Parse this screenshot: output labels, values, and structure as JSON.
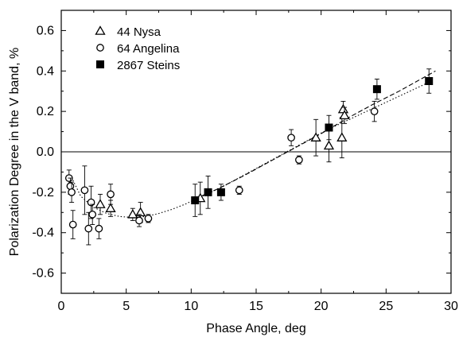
{
  "chart_data": {
    "type": "scatter",
    "xlabel": "Phase Angle, deg",
    "ylabel": "Polarization Degree in the V band, %",
    "xlim": [
      0,
      30
    ],
    "ylim": [
      -0.7,
      0.7
    ],
    "x_ticks": [
      0,
      5,
      10,
      15,
      20,
      25,
      30
    ],
    "y_ticks": [
      -0.6,
      -0.4,
      -0.2,
      0.0,
      0.2,
      0.4,
      0.6
    ],
    "x_tick_labels": [
      "0",
      "5",
      "10",
      "15",
      "20",
      "25",
      "30"
    ],
    "y_tick_labels": [
      "-0.6",
      "-0.4",
      "-0.2",
      "0.0",
      "0.2",
      "0.4",
      "0.6"
    ],
    "zero_line": 0.0,
    "legend_position": "top-left",
    "series": [
      {
        "name": "44 Nysa",
        "marker": "open-triangle",
        "points": [
          {
            "x": 3.0,
            "y": -0.26,
            "err": 0.05
          },
          {
            "x": 3.8,
            "y": -0.28,
            "err": 0.04
          },
          {
            "x": 5.5,
            "y": -0.31,
            "err": 0.03
          },
          {
            "x": 6.1,
            "y": -0.3,
            "err": 0.05
          },
          {
            "x": 10.7,
            "y": -0.23,
            "err": 0.08
          },
          {
            "x": 19.6,
            "y": 0.07,
            "err": 0.09
          },
          {
            "x": 20.6,
            "y": 0.03,
            "err": 0.08
          },
          {
            "x": 21.6,
            "y": 0.07,
            "err": 0.1
          },
          {
            "x": 21.7,
            "y": 0.21,
            "err": 0.04
          },
          {
            "x": 21.8,
            "y": 0.18,
            "err": 0.04
          }
        ]
      },
      {
        "name": "64 Angelina",
        "marker": "open-circle",
        "points": [
          {
            "x": 0.6,
            "y": -0.13,
            "err": 0.04
          },
          {
            "x": 0.7,
            "y": -0.17,
            "err": 0.04
          },
          {
            "x": 0.8,
            "y": -0.2,
            "err": 0.05
          },
          {
            "x": 0.9,
            "y": -0.36,
            "err": 0.07
          },
          {
            "x": 1.8,
            "y": -0.19,
            "err": 0.12
          },
          {
            "x": 2.1,
            "y": -0.38,
            "err": 0.08
          },
          {
            "x": 2.3,
            "y": -0.25,
            "err": 0.08
          },
          {
            "x": 2.4,
            "y": -0.31,
            "err": 0.05
          },
          {
            "x": 2.9,
            "y": -0.38,
            "err": 0.05
          },
          {
            "x": 3.8,
            "y": -0.21,
            "err": 0.05
          },
          {
            "x": 6.0,
            "y": -0.34,
            "err": 0.03
          },
          {
            "x": 6.7,
            "y": -0.33,
            "err": 0.02
          },
          {
            "x": 13.7,
            "y": -0.19,
            "err": 0.02
          },
          {
            "x": 17.7,
            "y": 0.07,
            "err": 0.04
          },
          {
            "x": 18.3,
            "y": -0.04,
            "err": 0.02
          },
          {
            "x": 24.1,
            "y": 0.2,
            "err": 0.05
          }
        ]
      },
      {
        "name": "2867 Steins",
        "marker": "filled-square",
        "points": [
          {
            "x": 10.3,
            "y": -0.24,
            "err": 0.08
          },
          {
            "x": 11.3,
            "y": -0.2,
            "err": 0.08
          },
          {
            "x": 12.3,
            "y": -0.2,
            "err": 0.04
          },
          {
            "x": 20.6,
            "y": 0.12,
            "err": 0.06
          },
          {
            "x": 24.3,
            "y": 0.31,
            "err": 0.05
          },
          {
            "x": 28.3,
            "y": 0.35,
            "err": 0.06
          }
        ]
      }
    ],
    "fit_curves": [
      {
        "style": "dotted",
        "x": [
          0.9,
          1.5,
          2.5,
          3.5,
          4.5,
          5.5,
          6.5,
          7.5,
          8.5,
          9.5,
          10.5,
          11.5,
          12.5,
          13.5,
          14.5,
          15.5,
          16.5,
          17.5,
          18.5,
          19.5,
          20.5,
          21.5,
          22.5,
          23.5,
          24.5,
          25.5,
          26.5,
          27.5,
          28.5
        ],
        "y": [
          -0.14,
          -0.22,
          -0.275,
          -0.305,
          -0.32,
          -0.325,
          -0.32,
          -0.305,
          -0.285,
          -0.26,
          -0.23,
          -0.2,
          -0.17,
          -0.135,
          -0.1,
          -0.065,
          -0.03,
          0.005,
          0.04,
          0.075,
          0.11,
          0.14,
          0.17,
          0.2,
          0.23,
          0.26,
          0.29,
          0.32,
          0.35
        ]
      },
      {
        "style": "dashed",
        "x": [
          10.2,
          12.0,
          14.0,
          16.0,
          18.0,
          20.0,
          22.0,
          24.0,
          26.0,
          28.8
        ],
        "y": [
          -0.235,
          -0.185,
          -0.12,
          -0.05,
          0.02,
          0.09,
          0.165,
          0.235,
          0.3,
          0.4
        ]
      }
    ]
  }
}
